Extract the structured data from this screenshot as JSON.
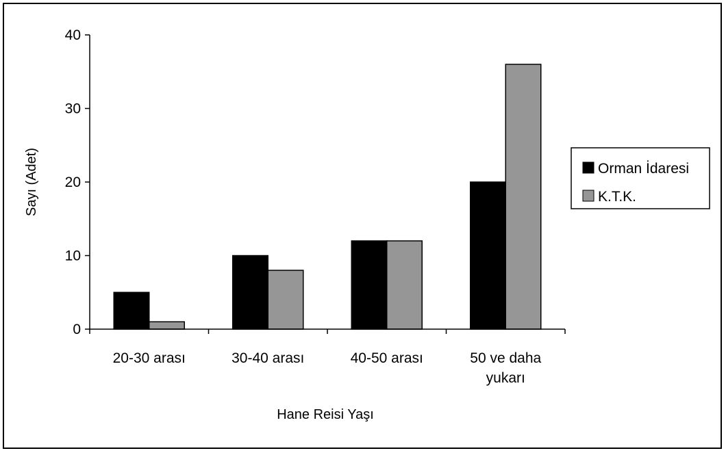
{
  "chart_data": {
    "type": "bar",
    "xlabel": "Hane Reisi Yaşı",
    "ylabel": "Sayı (Adet)",
    "ylim": [
      0,
      40
    ],
    "yticks": [
      "0",
      "10",
      "20",
      "30",
      "40"
    ],
    "categories": [
      [
        "20-30 arası"
      ],
      [
        "30-40 arası"
      ],
      [
        "40-50 arası"
      ],
      [
        "50 ve daha",
        "yukarı"
      ]
    ],
    "series": [
      {
        "name": "Orman İdaresi",
        "values": [
          5,
          10,
          12,
          20
        ],
        "color": "#000000"
      },
      {
        "name": "K.T.K.",
        "values": [
          1,
          8,
          12,
          36
        ],
        "color": "#969696"
      }
    ],
    "legend_position": "right",
    "grid": false
  }
}
